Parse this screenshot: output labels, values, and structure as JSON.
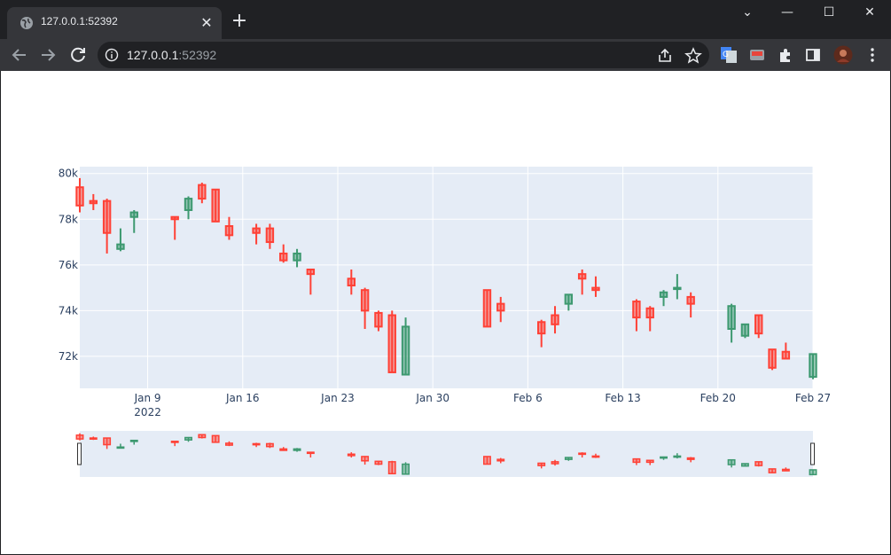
{
  "browser": {
    "tab_title": "127.0.0.1:52392",
    "url_host": "127.0.0.1",
    "url_port": ":52392",
    "tab_close_icon": "close-icon",
    "new_tab_icon": "plus-icon"
  },
  "colors": {
    "increasing": "#3d9970",
    "decreasing": "#ff4136",
    "plot_bg": "#e5ecf6"
  },
  "chart_data": {
    "type": "candlestick",
    "title": "",
    "xlabel": "",
    "ylabel": "",
    "xlim": [
      "2022-01-04",
      "2022-02-27"
    ],
    "ylim": [
      70600,
      80300
    ],
    "yticks": [
      72000,
      74000,
      76000,
      78000,
      80000
    ],
    "ytick_labels": [
      "72k",
      "74k",
      "76k",
      "78k",
      "80k"
    ],
    "xticks": [
      "2022-01-09",
      "2022-01-16",
      "2022-01-23",
      "2022-01-30",
      "2022-02-06",
      "2022-02-13",
      "2022-02-20",
      "2022-02-27"
    ],
    "xtick_labels": [
      "Jan 9",
      "Jan 16",
      "Jan 23",
      "Jan 30",
      "Feb 6",
      "Feb 13",
      "Feb 20",
      "Feb 27"
    ],
    "xtick_sublabel": "2022",
    "grid": true,
    "rangeslider": true,
    "candles": [
      {
        "date": "2022-01-04",
        "open": 79400,
        "high": 79800,
        "low": 78300,
        "close": 78600
      },
      {
        "date": "2022-01-05",
        "open": 78800,
        "high": 79100,
        "low": 78400,
        "close": 78700
      },
      {
        "date": "2022-01-06",
        "open": 78800,
        "high": 78900,
        "low": 76500,
        "close": 77400
      },
      {
        "date": "2022-01-07",
        "open": 76700,
        "high": 77600,
        "low": 76600,
        "close": 76900
      },
      {
        "date": "2022-01-08",
        "open": 78100,
        "high": 78400,
        "low": 77400,
        "close": 78300
      },
      {
        "date": "2022-01-11",
        "open": 78100,
        "high": 78100,
        "low": 77100,
        "close": 78000
      },
      {
        "date": "2022-01-12",
        "open": 78400,
        "high": 79000,
        "low": 78000,
        "close": 78900
      },
      {
        "date": "2022-01-13",
        "open": 79500,
        "high": 79600,
        "low": 78700,
        "close": 78900
      },
      {
        "date": "2022-01-14",
        "open": 79300,
        "high": 79300,
        "low": 77900,
        "close": 77900
      },
      {
        "date": "2022-01-15",
        "open": 77700,
        "high": 78100,
        "low": 77100,
        "close": 77300
      },
      {
        "date": "2022-01-17",
        "open": 77600,
        "high": 77800,
        "low": 76900,
        "close": 77400
      },
      {
        "date": "2022-01-18",
        "open": 77600,
        "high": 77800,
        "low": 76700,
        "close": 77000
      },
      {
        "date": "2022-01-19",
        "open": 76500,
        "high": 76900,
        "low": 76100,
        "close": 76200
      },
      {
        "date": "2022-01-20",
        "open": 76200,
        "high": 76700,
        "low": 75900,
        "close": 76500
      },
      {
        "date": "2022-01-21",
        "open": 75800,
        "high": 75800,
        "low": 74700,
        "close": 75600
      },
      {
        "date": "2022-01-24",
        "open": 75400,
        "high": 75800,
        "low": 74700,
        "close": 75100
      },
      {
        "date": "2022-01-25",
        "open": 74900,
        "high": 75000,
        "low": 73200,
        "close": 74000
      },
      {
        "date": "2022-01-26",
        "open": 73900,
        "high": 74000,
        "low": 73100,
        "close": 73300
      },
      {
        "date": "2022-01-27",
        "open": 73800,
        "high": 74000,
        "low": 71300,
        "close": 71300
      },
      {
        "date": "2022-01-28",
        "open": 71200,
        "high": 73700,
        "low": 71200,
        "close": 73300
      },
      {
        "date": "2022-02-03",
        "open": 74900,
        "high": 74900,
        "low": 73300,
        "close": 73300
      },
      {
        "date": "2022-02-04",
        "open": 74300,
        "high": 74600,
        "low": 73500,
        "close": 74000
      },
      {
        "date": "2022-02-07",
        "open": 73500,
        "high": 73600,
        "low": 72400,
        "close": 73000
      },
      {
        "date": "2022-02-08",
        "open": 73800,
        "high": 74200,
        "low": 73000,
        "close": 73400
      },
      {
        "date": "2022-02-09",
        "open": 74300,
        "high": 74700,
        "low": 74000,
        "close": 74700
      },
      {
        "date": "2022-02-10",
        "open": 75600,
        "high": 75800,
        "low": 74700,
        "close": 75400
      },
      {
        "date": "2022-02-11",
        "open": 75000,
        "high": 75500,
        "low": 74600,
        "close": 74900
      },
      {
        "date": "2022-02-14",
        "open": 74400,
        "high": 74500,
        "low": 73100,
        "close": 73700
      },
      {
        "date": "2022-02-15",
        "open": 74100,
        "high": 74200,
        "low": 73100,
        "close": 73700
      },
      {
        "date": "2022-02-16",
        "open": 74600,
        "high": 74900,
        "low": 74200,
        "close": 74800
      },
      {
        "date": "2022-02-17",
        "open": 75000,
        "high": 75600,
        "low": 74500,
        "close": 75000
      },
      {
        "date": "2022-02-18",
        "open": 74600,
        "high": 74800,
        "low": 73700,
        "close": 74300
      },
      {
        "date": "2022-02-21",
        "open": 73200,
        "high": 74300,
        "low": 72600,
        "close": 74200
      },
      {
        "date": "2022-02-22",
        "open": 72900,
        "high": 73400,
        "low": 72800,
        "close": 73400
      },
      {
        "date": "2022-02-23",
        "open": 73800,
        "high": 73800,
        "low": 72800,
        "close": 73000
      },
      {
        "date": "2022-02-24",
        "open": 72300,
        "high": 72300,
        "low": 71400,
        "close": 71500
      },
      {
        "date": "2022-02-25",
        "open": 72200,
        "high": 72600,
        "low": 71900,
        "close": 71900
      },
      {
        "date": "2022-02-27",
        "open": 71100,
        "high": 72100,
        "low": 71000,
        "close": 72100
      }
    ]
  }
}
